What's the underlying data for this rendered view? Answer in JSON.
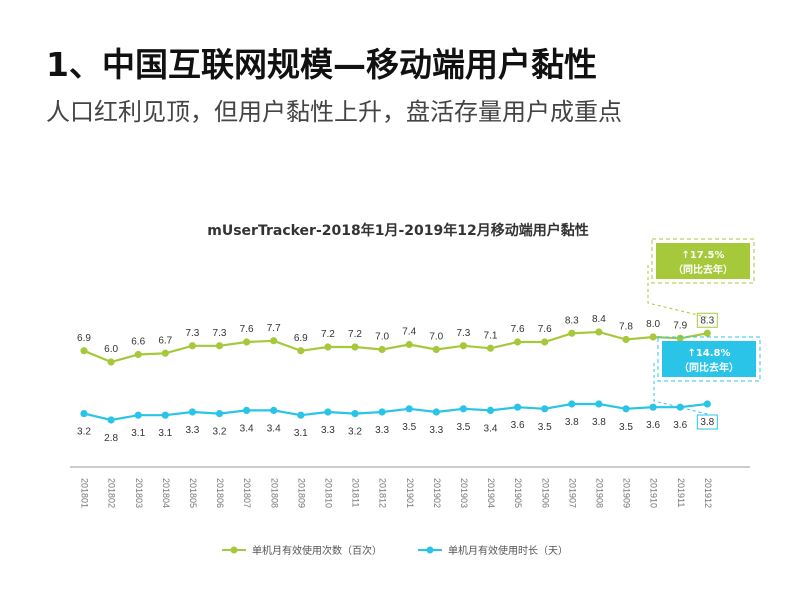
{
  "header": {
    "title": "1、中国互联网规模—移动端用户黏性",
    "subtitle": "人口红利见顶，但用户黏性上升，盘活存量用户成重点"
  },
  "chart_data": {
    "type": "line",
    "title": "mUserTracker-2018年1月-2019年12月移动端用户黏性",
    "categories": [
      "201801",
      "201802",
      "201803",
      "201804",
      "201805",
      "201806",
      "201807",
      "201808",
      "201809",
      "201810",
      "201811",
      "201812",
      "201901",
      "201902",
      "201903",
      "201904",
      "201905",
      "201906",
      "201907",
      "201908",
      "201909",
      "201910",
      "201911",
      "201912"
    ],
    "series": [
      {
        "name": "单机月有效使用次数（百次）",
        "color": "#a6c93b",
        "values": [
          6.9,
          6.0,
          6.6,
          6.7,
          7.3,
          7.3,
          7.6,
          7.7,
          6.9,
          7.2,
          7.2,
          7.0,
          7.4,
          7.0,
          7.3,
          7.1,
          7.6,
          7.6,
          8.3,
          8.4,
          7.8,
          8.0,
          7.9,
          8.3
        ]
      },
      {
        "name": "单机月有效使用时长（天）",
        "color": "#29c4e8",
        "values": [
          3.2,
          2.8,
          3.1,
          3.1,
          3.3,
          3.2,
          3.4,
          3.4,
          3.1,
          3.3,
          3.2,
          3.3,
          3.5,
          3.3,
          3.5,
          3.4,
          3.6,
          3.5,
          3.8,
          3.8,
          3.5,
          3.6,
          3.6,
          3.8
        ]
      }
    ],
    "legend_position": "bottom",
    "grid": false,
    "callouts": [
      {
        "series": 0,
        "pct": "↑17.5%",
        "note": "（同比去年）",
        "color": "#a6c93b"
      },
      {
        "series": 1,
        "pct": "↑14.8%",
        "note": "（同比去年）",
        "color": "#29c4e8"
      }
    ]
  }
}
